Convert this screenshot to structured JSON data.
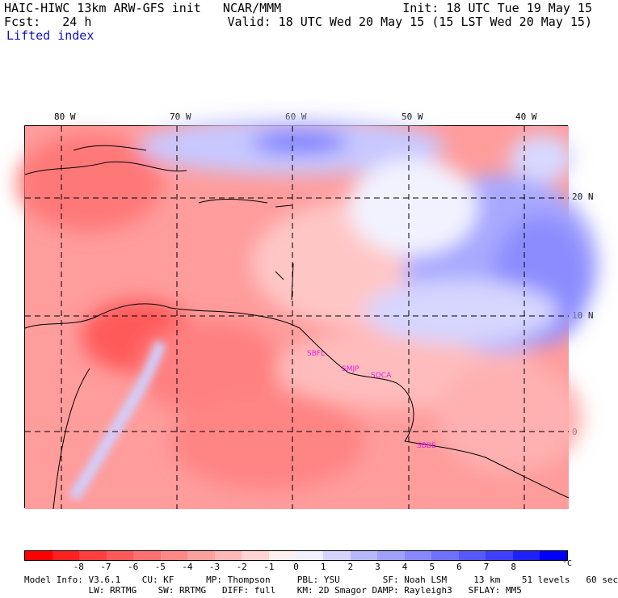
{
  "header": {
    "model_title": "HAIC-HIWC 13km ARW-GFS init   NCAR/MMM",
    "init": "Init: 18 UTC Tue 19 May 15",
    "fcst": "Fcst:   24 h",
    "valid": "Valid: 18 UTC Wed 20 May 15 (15 LST Wed 20 May 15)",
    "field": "Lifted index"
  },
  "map": {
    "lon_ticks": [
      "80 W",
      "70 W",
      "60 W",
      "50 W",
      "40 W"
    ],
    "lat_ticks": [
      "20 N",
      "10 N",
      "0"
    ],
    "stations": [
      "SBFL",
      "SMJP",
      "SOCA",
      "SBBE"
    ]
  },
  "colorbar": {
    "colors": [
      "#ff0000",
      "#ff2020",
      "#ff3f3f",
      "#ff5858",
      "#ff7070",
      "#ff8888",
      "#ffa0a0",
      "#ffb8b8",
      "#ffd4d4",
      "#fff0f0",
      "#f0f0ff",
      "#d4d4ff",
      "#b8b8ff",
      "#a0a0ff",
      "#8888ff",
      "#7070ff",
      "#5858ff",
      "#3f3fff",
      "#2020ff",
      "#0000ff"
    ],
    "labels": [
      "-8",
      "-7",
      "-6",
      "-5",
      "-4",
      "-3",
      "-2",
      "-1",
      "0",
      "1",
      "2",
      "3",
      "4",
      "5",
      "6",
      "7",
      "8"
    ],
    "unit": "°C"
  },
  "footer": {
    "line1": "Model Info: V3.6.1    CU: KF      MP: Thompson     PBL: YSU        SF: Noah LSM     13 km    51 levels   60 sec",
    "line2": "            LW: RRTMG    SW: RRTMG   DIFF: full    KM: 2D Smagor DAMP: Rayleigh3   SFLAY: MM5"
  }
}
